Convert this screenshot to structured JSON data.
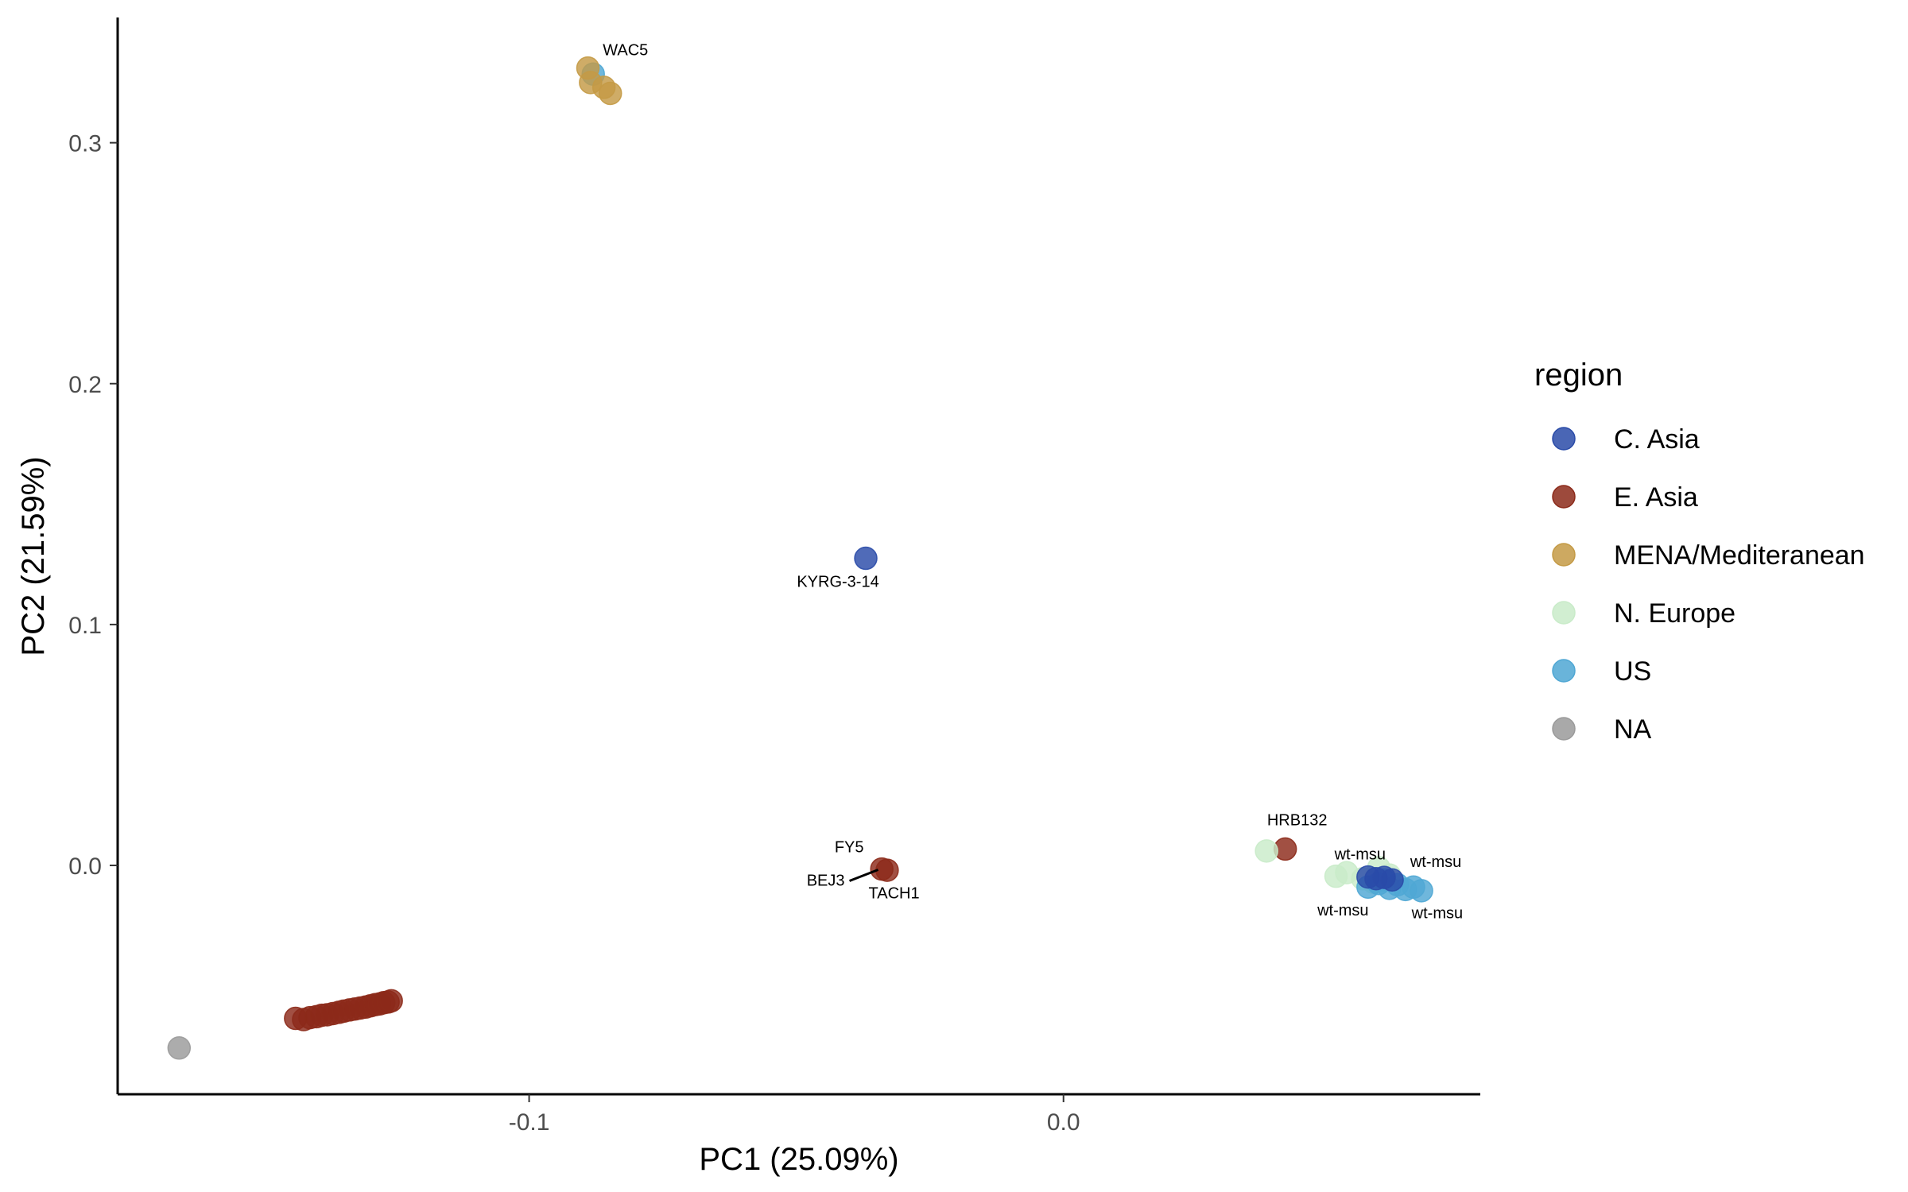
{
  "chart_data": {
    "type": "scatter",
    "title": "",
    "xlabel": "PC1 (25.09%)",
    "ylabel": "PC2 (21.59%)",
    "xlim": [
      -0.177,
      0.078
    ],
    "ylim": [
      -0.095,
      0.352
    ],
    "x_ticks": [
      {
        "value": -0.1,
        "label": "-0.1"
      },
      {
        "value": 0.0,
        "label": "0.0"
      }
    ],
    "y_ticks": [
      {
        "value": 0.0,
        "label": "0.0"
      },
      {
        "value": 0.1,
        "label": "0.1"
      },
      {
        "value": 0.2,
        "label": "0.2"
      },
      {
        "value": 0.3,
        "label": "0.3"
      }
    ],
    "grid": false,
    "legend": {
      "title": "region",
      "placement": "right",
      "entries": [
        {
          "name": "C. Asia",
          "color": "#2a4ba8"
        },
        {
          "name": "E. Asia",
          "color": "#8c2a1a"
        },
        {
          "name": "MENA/Mediteranean",
          "color": "#c49a45"
        },
        {
          "name": "N. Europe",
          "color": "#c9ebc9"
        },
        {
          "name": "US",
          "color": "#4fa7d4"
        },
        {
          "name": "NA",
          "color": "#9a9a9a"
        }
      ]
    },
    "series": [
      {
        "region": "E. Asia",
        "color": "#8c2a1a",
        "points": [
          {
            "x": -0.1437,
            "y": -0.0635
          },
          {
            "x": -0.1422,
            "y": -0.064
          },
          {
            "x": -0.141,
            "y": -0.0632
          },
          {
            "x": -0.1398,
            "y": -0.0628
          },
          {
            "x": -0.1388,
            "y": -0.0622
          },
          {
            "x": -0.1378,
            "y": -0.062
          },
          {
            "x": -0.1367,
            "y": -0.0615
          },
          {
            "x": -0.1356,
            "y": -0.061
          },
          {
            "x": -0.1347,
            "y": -0.0605
          },
          {
            "x": -0.1336,
            "y": -0.06
          },
          {
            "x": -0.1326,
            "y": -0.0596
          },
          {
            "x": -0.1316,
            "y": -0.0592
          },
          {
            "x": -0.1306,
            "y": -0.0588
          },
          {
            "x": -0.1297,
            "y": -0.0583
          },
          {
            "x": -0.1288,
            "y": -0.0578
          },
          {
            "x": -0.128,
            "y": -0.0575
          },
          {
            "x": -0.1272,
            "y": -0.057
          },
          {
            "x": -0.1264,
            "y": -0.0567
          },
          {
            "x": -0.1258,
            "y": -0.0562
          },
          {
            "x": -0.033,
            "y": -0.002
          },
          {
            "x": -0.034,
            "y": -0.0015
          },
          {
            "x": 0.0415,
            "y": 0.0068
          }
        ]
      },
      {
        "region": "N. Europe",
        "color": "#c9ebc9",
        "points": [
          {
            "x": 0.038,
            "y": 0.006
          },
          {
            "x": 0.051,
            "y": -0.0045
          },
          {
            "x": 0.053,
            "y": -0.003
          },
          {
            "x": 0.056,
            "y": -0.0055
          },
          {
            "x": 0.059,
            "y": -0.001
          },
          {
            "x": 0.061,
            "y": -0.004
          },
          {
            "x": 0.058,
            "y": -0.007
          }
        ]
      },
      {
        "region": "US",
        "color": "#4fa7d4",
        "points": [
          {
            "x": -0.088,
            "y": 0.3285
          },
          {
            "x": 0.057,
            "y": -0.009
          },
          {
            "x": 0.059,
            "y": -0.0075
          },
          {
            "x": 0.061,
            "y": -0.0095
          },
          {
            "x": 0.0625,
            "y": -0.008
          },
          {
            "x": 0.064,
            "y": -0.01
          },
          {
            "x": 0.0655,
            "y": -0.009
          },
          {
            "x": 0.067,
            "y": -0.0105
          },
          {
            "x": 0.06,
            "y": -0.006
          }
        ]
      },
      {
        "region": "MENA/Mediteranean",
        "color": "#c49a45",
        "points": [
          {
            "x": -0.089,
            "y": 0.331
          },
          {
            "x": -0.0885,
            "y": 0.325
          },
          {
            "x": -0.086,
            "y": 0.323
          },
          {
            "x": -0.0848,
            "y": 0.3205
          }
        ]
      },
      {
        "region": "C. Asia",
        "color": "#2a4ba8",
        "points": [
          {
            "x": -0.037,
            "y": 0.1275
          },
          {
            "x": 0.057,
            "y": -0.0048
          },
          {
            "x": 0.0585,
            "y": -0.0055
          },
          {
            "x": 0.06,
            "y": -0.005
          },
          {
            "x": 0.0615,
            "y": -0.006
          }
        ]
      },
      {
        "region": "NA",
        "color": "#9a9a9a",
        "points": [
          {
            "x": -0.1655,
            "y": -0.0758
          }
        ]
      }
    ],
    "annotations": [
      {
        "text": "WAC5",
        "x": -0.088,
        "y": 0.331
      },
      {
        "text": "KYRG-3-14",
        "x": -0.037,
        "y": 0.1275
      },
      {
        "text": "HRB132",
        "x": 0.0415,
        "y": 0.0068
      },
      {
        "text": "FY5",
        "x": -0.0335,
        "y": -0.0018
      },
      {
        "text": "BEJ3",
        "x": -0.0335,
        "y": -0.0018
      },
      {
        "text": "TACH1",
        "x": -0.0335,
        "y": -0.0018
      },
      {
        "text": "wt-msu",
        "x": 0.057,
        "y": -0.0048
      },
      {
        "text": "wt-msu",
        "x": 0.0615,
        "y": -0.006
      },
      {
        "text": "wt-msu",
        "x": 0.059,
        "y": -0.0075
      },
      {
        "text": "wt-msu",
        "x": 0.064,
        "y": -0.01
      }
    ]
  }
}
